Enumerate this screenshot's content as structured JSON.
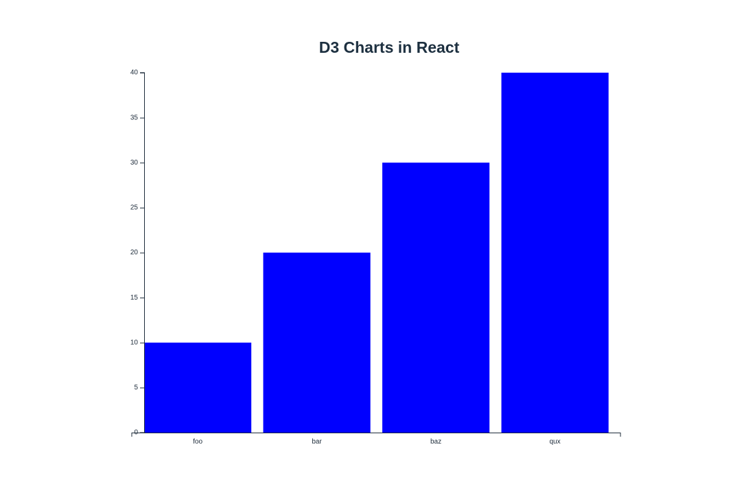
{
  "chart_data": {
    "type": "bar",
    "title": "D3 Charts in React",
    "xlabel": "",
    "ylabel": "",
    "categories": [
      "foo",
      "bar",
      "baz",
      "qux"
    ],
    "values": [
      10,
      20,
      30,
      40
    ],
    "ylim": [
      0,
      40
    ],
    "yticks": [
      0,
      5,
      10,
      15,
      20,
      25,
      30,
      35,
      40
    ],
    "grid": false,
    "legend": "none",
    "colors": {
      "bar": "#0000ff",
      "axis": "#1d2b3a",
      "title": "#1d3040"
    }
  }
}
